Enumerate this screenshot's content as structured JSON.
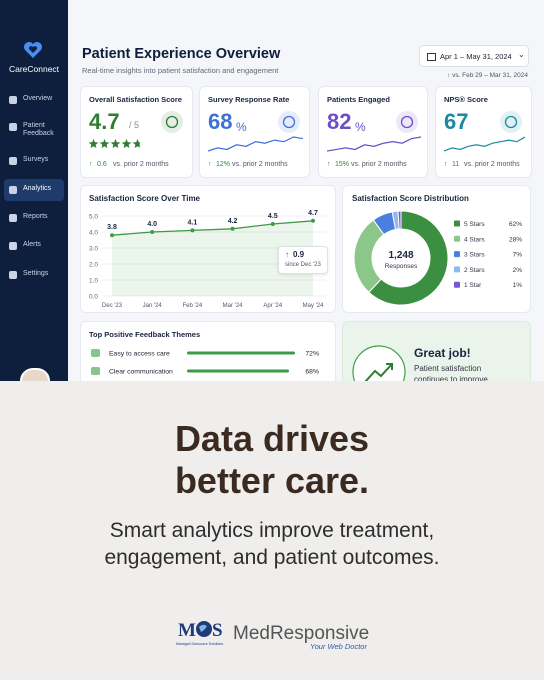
{
  "sidebar": {
    "brand": "CareConnect",
    "nav": [
      "Overview",
      "Patient Feedback",
      "Surveys",
      "Analytics",
      "Reports",
      "Alerts",
      "Settings"
    ],
    "active": 3
  },
  "header": {
    "title": "Patient Experience Overview",
    "subtitle": "Real-time insights into patient satisfaction and engagement",
    "date_range": "Apr 1 – May 31, 2024",
    "comparison": "vs. Feb 29 – Mar 31, 2024"
  },
  "kpis": [
    {
      "label": "Overall Satisfaction Score",
      "value": 4.7,
      "unit": "/ 5",
      "max": 5,
      "change": "0.6",
      "note": "vs. prior 2 months",
      "color": "#2e7d32"
    },
    {
      "label": "Survey Response Rate",
      "value": 68,
      "unit": "%",
      "change": "12%",
      "note": "vs. prior 2 months",
      "color": "#3f6fd8",
      "sparkline": [
        3,
        4,
        3.5,
        5,
        4.5,
        6,
        5.5,
        6.5,
        6,
        7.5,
        7
      ]
    },
    {
      "label": "Patients Engaged",
      "value": 82,
      "unit": "%",
      "change": "15%",
      "note": "vs. prior 2 months",
      "color": "#6a4fc8",
      "sparkline": [
        3,
        3.5,
        4,
        3.5,
        5,
        4.5,
        5.5,
        6,
        5.5,
        7,
        7.5
      ]
    },
    {
      "label": "NPS® Score",
      "value": 67,
      "change": "11",
      "note": "vs. prior 2 months",
      "color": "#1b8aa0",
      "sparkline": [
        3,
        4,
        3.5,
        4.5,
        5,
        4.5,
        5.5,
        6,
        6.5,
        6,
        7.5
      ]
    }
  ],
  "line_chart": {
    "type": "line",
    "title": "Satisfaction Score Over Time",
    "categories": [
      "Dec '23",
      "Jan '24",
      "Feb '24",
      "Mar '24",
      "Apr '24",
      "May '24"
    ],
    "values": [
      3.8,
      4.0,
      4.1,
      4.2,
      4.5,
      4.7
    ],
    "value_labels": [
      "3.8",
      "4.0",
      "4.1",
      "4.2",
      "4.5",
      "4.7"
    ],
    "ylim": [
      0,
      5
    ],
    "yticks": [
      {
        "value": 0,
        "label": "0.0"
      },
      {
        "value": 1,
        "label": "1.0"
      },
      {
        "value": 2,
        "label": "2.0"
      },
      {
        "value": 3,
        "label": "3.0"
      },
      {
        "value": 4,
        "label": "4.0"
      },
      {
        "value": 5,
        "label": "5.0"
      }
    ],
    "color": "#3d9a47",
    "annotation": {
      "value": "0.9",
      "text": "since Dec '23"
    }
  },
  "donut": {
    "type": "pie",
    "title": "Satisfaction Score Distribution",
    "total": "1,248",
    "total_label": "Responses",
    "categories": [
      "5 Stars",
      "4 Stars",
      "3 Stars",
      "2 Stars",
      "1 Star"
    ],
    "values": [
      62,
      28,
      7,
      2,
      1
    ],
    "value_labels": [
      "62%",
      "28%",
      "7%",
      "2%",
      "1%"
    ],
    "colors": [
      "#3b8f41",
      "#8cc78a",
      "#4a7fe0",
      "#8fb7f0",
      "#7a55d8"
    ]
  },
  "themes": {
    "title": "Top Positive Feedback Themes",
    "items": [
      {
        "label": "Easy to access care",
        "value": 72,
        "value_label": "72%"
      },
      {
        "label": "Clear communication",
        "value": 68,
        "value_label": "68%"
      }
    ],
    "color": "#3d9a47"
  },
  "callout": {
    "title": "Great job!",
    "text": "Patient satisfaction continues to improve"
  },
  "promo": {
    "headline": "Data drives better care.",
    "subtext": "Smart analytics improve treatment, engagement, and patient outcomes.",
    "logo": {
      "left": "M",
      "right": "S",
      "tagline": "Managed Outsource Solutions",
      "name": "MedResponsive",
      "slogan": "Your Web Doctor"
    }
  }
}
